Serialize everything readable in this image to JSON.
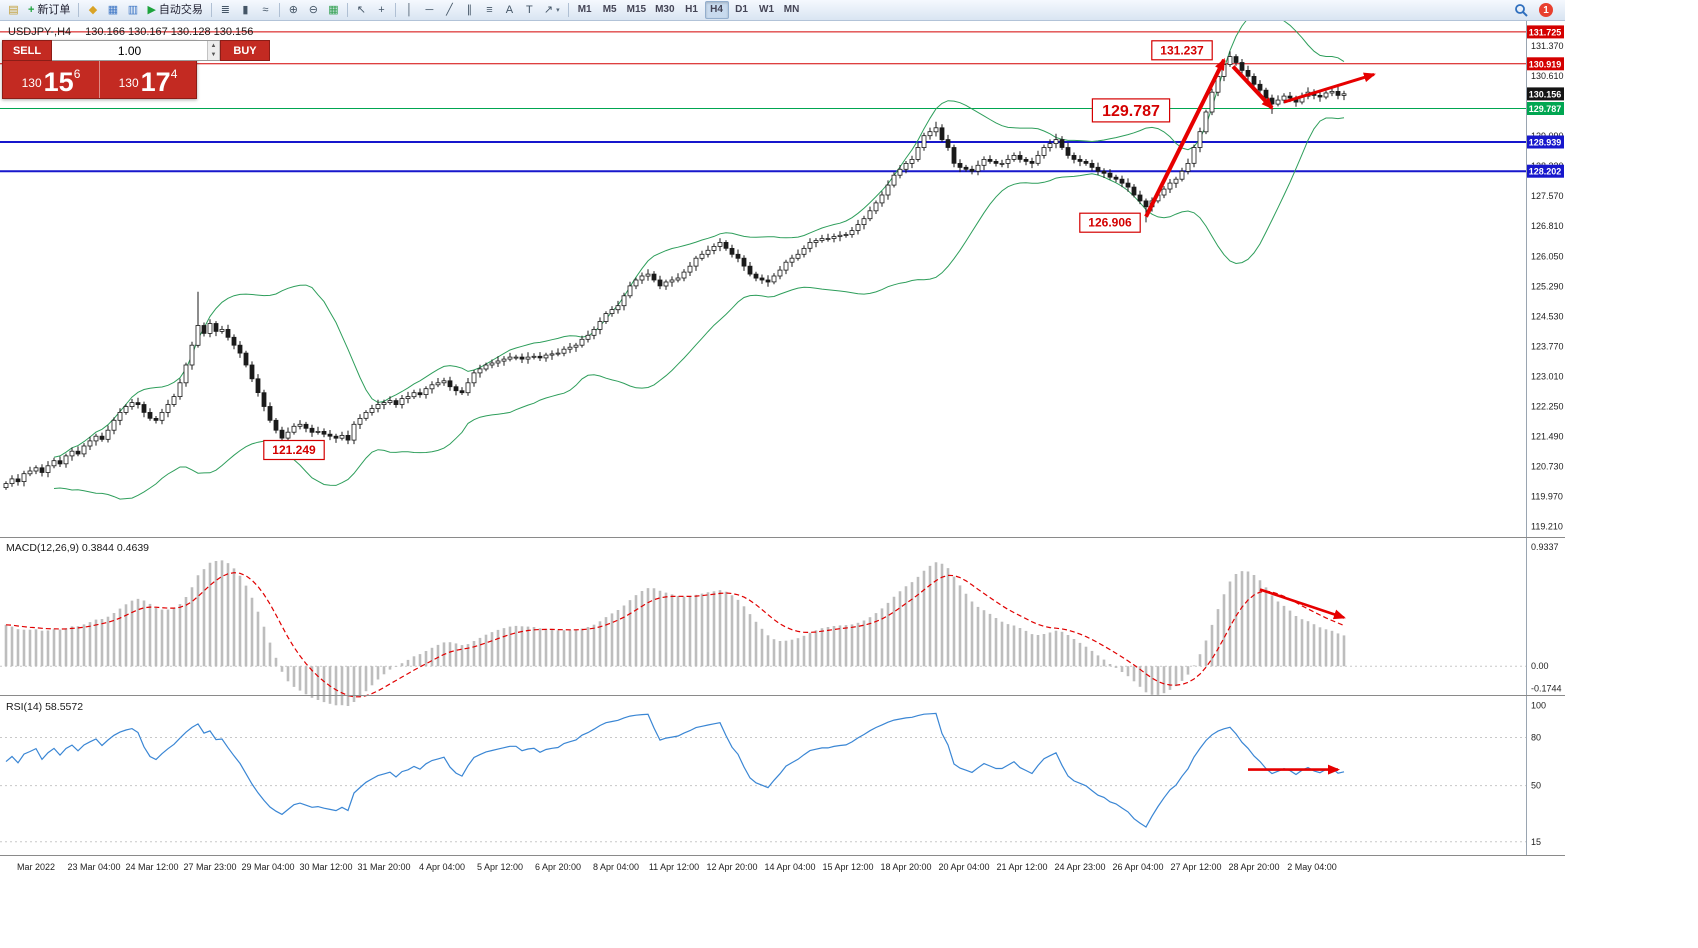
{
  "toolbar": {
    "items": [
      {
        "id": "new-chart-button",
        "glyph": "▤",
        "color": "#c09a2e"
      },
      {
        "id": "new-order-button",
        "glyph": "+",
        "color": "#1da33c",
        "label": "新订单",
        "bold": true
      },
      {
        "id": "sep-1",
        "sep": true
      },
      {
        "id": "expert-advisors-icon",
        "glyph": "◆",
        "color": "#d9a326"
      },
      {
        "id": "market-watch-button",
        "glyph": "▦",
        "color": "#3b74c4"
      },
      {
        "id": "data-window-button",
        "glyph": "▥",
        "color": "#3b74c4"
      },
      {
        "id": "autotrading-button",
        "glyph": "▶",
        "color": "#1da33c",
        "label": "自动交易"
      },
      {
        "id": "sep-2",
        "sep": true
      },
      {
        "id": "bar-chart-type-button",
        "glyph": "≣",
        "color": "#445566"
      },
      {
        "id": "candlestick-chart-type-button",
        "glyph": "▮",
        "color": "#445566"
      },
      {
        "id": "line-chart-type-button",
        "glyph": "≈",
        "color": "#445566"
      },
      {
        "id": "sep-3",
        "sep": true
      },
      {
        "id": "zoom-in-button",
        "glyph": "⊕",
        "color": "#445566"
      },
      {
        "id": "zoom-out-button",
        "glyph": "⊖",
        "color": "#445566"
      },
      {
        "id": "tile-windows-button",
        "glyph": "▦",
        "color": "#2c9e4b"
      },
      {
        "id": "sep-4",
        "sep": true
      },
      {
        "id": "cursor-tool-button",
        "glyph": "↖",
        "color": "#445566"
      },
      {
        "id": "crosshair-tool-button",
        "glyph": "+",
        "color": "#445566"
      },
      {
        "id": "sep-5",
        "sep": true
      },
      {
        "id": "vertical-line-tool-button",
        "glyph": "│",
        "color": "#445566"
      },
      {
        "id": "horizontal-line-tool-button",
        "glyph": "─",
        "color": "#445566"
      },
      {
        "id": "trendline-tool-button",
        "glyph": "╱",
        "color": "#445566"
      },
      {
        "id": "channel-tool-button",
        "glyph": "∥",
        "color": "#445566"
      },
      {
        "id": "fibonacci-tool-button",
        "glyph": "≡",
        "color": "#445566"
      },
      {
        "id": "text-tool-button",
        "glyph": "A",
        "color": "#445566"
      },
      {
        "id": "label-tool-button",
        "glyph": "T",
        "color": "#445566"
      },
      {
        "id": "arrows-tool-button",
        "glyph": "↗",
        "color": "#445566",
        "caret": true
      },
      {
        "id": "sep-6",
        "sep": true
      }
    ],
    "timeframes": [
      "M1",
      "M5",
      "M15",
      "M30",
      "H1",
      "H4",
      "D1",
      "W1",
      "MN"
    ],
    "active_timeframe": "H4",
    "notification_count": "1"
  },
  "trade": {
    "sell_label": "SELL",
    "buy_label": "BUY",
    "volume": "1.00",
    "sell_price": {
      "prefix": "130",
      "big": "15",
      "sup": "6"
    },
    "buy_price": {
      "prefix": "130",
      "big": "17",
      "sup": "4"
    }
  },
  "chart": {
    "symbol_period": "USDJPY-,H4",
    "ohlc": "130.166 130.167 130.128 130.156"
  },
  "chart_data": [
    {
      "type": "candlestick",
      "title": "USDJPY- H4",
      "ylim": [
        119.0,
        131.95
      ],
      "closes": [
        120.3,
        120.42,
        120.35,
        120.55,
        120.62,
        120.7,
        120.58,
        120.75,
        120.88,
        120.8,
        121.0,
        121.12,
        121.05,
        121.25,
        121.38,
        121.5,
        121.42,
        121.65,
        121.9,
        122.1,
        122.25,
        122.35,
        122.3,
        122.1,
        121.95,
        121.9,
        122.1,
        122.3,
        122.5,
        122.85,
        123.3,
        123.8,
        124.3,
        124.1,
        124.35,
        124.15,
        124.2,
        124.0,
        123.8,
        123.6,
        123.3,
        122.95,
        122.6,
        122.25,
        121.9,
        121.65,
        121.45,
        121.6,
        121.75,
        121.8,
        121.7,
        121.6,
        121.62,
        121.55,
        121.5,
        121.45,
        121.52,
        121.4,
        121.8,
        121.95,
        122.1,
        122.2,
        122.3,
        122.35,
        122.4,
        122.3,
        122.45,
        122.5,
        122.6,
        122.55,
        122.7,
        122.8,
        122.85,
        122.9,
        122.75,
        122.65,
        122.6,
        122.85,
        123.1,
        123.2,
        123.3,
        123.35,
        123.4,
        123.45,
        123.5,
        123.5,
        123.45,
        123.5,
        123.52,
        123.48,
        123.55,
        123.58,
        123.6,
        123.7,
        123.75,
        123.8,
        123.95,
        124.05,
        124.2,
        124.4,
        124.6,
        124.7,
        124.8,
        125.05,
        125.3,
        125.45,
        125.55,
        125.6,
        125.45,
        125.3,
        125.4,
        125.45,
        125.5,
        125.65,
        125.8,
        126.0,
        126.1,
        126.2,
        126.3,
        126.4,
        126.25,
        126.1,
        126.0,
        125.8,
        125.6,
        125.5,
        125.45,
        125.4,
        125.55,
        125.7,
        125.9,
        126.0,
        126.1,
        126.25,
        126.4,
        126.45,
        126.5,
        126.5,
        126.55,
        126.58,
        126.6,
        126.7,
        126.85,
        127.0,
        127.2,
        127.4,
        127.6,
        127.85,
        128.1,
        128.25,
        128.4,
        128.5,
        128.8,
        129.1,
        129.2,
        129.3,
        129.0,
        128.8,
        128.4,
        128.3,
        128.25,
        128.2,
        128.35,
        128.5,
        128.45,
        128.4,
        128.4,
        128.5,
        128.6,
        128.5,
        128.45,
        128.4,
        128.6,
        128.8,
        128.9,
        129.0,
        128.8,
        128.6,
        128.5,
        128.45,
        128.4,
        128.3,
        128.2,
        128.15,
        128.05,
        128.0,
        127.9,
        127.8,
        127.6,
        127.45,
        127.3,
        127.45,
        127.6,
        127.75,
        127.9,
        128.0,
        128.2,
        128.4,
        128.8,
        129.2,
        129.7,
        130.2,
        130.6,
        130.9,
        131.1,
        130.95,
        130.75,
        130.6,
        130.4,
        130.25,
        130.05,
        129.9,
        130.0,
        130.1,
        130.05,
        129.95,
        130.1,
        130.2,
        130.12,
        130.08,
        130.18,
        130.22,
        130.12,
        130.16
      ],
      "wick_overrides": [
        {
          "i": 32,
          "high": 125.15
        },
        {
          "i": 46,
          "low": 121.249
        },
        {
          "i": 57,
          "low": 121.3
        },
        {
          "i": 155,
          "high": 129.45
        },
        {
          "i": 175,
          "high": 129.15
        },
        {
          "i": 190,
          "low": 126.906
        },
        {
          "i": 204,
          "high": 131.237
        },
        {
          "i": 211,
          "low": 129.65
        }
      ],
      "bollinger": {
        "period": 20,
        "deviation": 2.2,
        "color": "#2e9e5b"
      },
      "hlines": [
        {
          "price": 131.725,
          "color": "#d40000",
          "label": "131.725",
          "width": 1
        },
        {
          "price": 130.919,
          "color": "#d40000",
          "label": "130.919",
          "width": 1
        },
        {
          "price": 129.787,
          "color": "#00a651",
          "label": "129.787",
          "width": 1
        },
        {
          "price": 128.939,
          "color": "#1717cc",
          "label": "128.939",
          "width": 2
        },
        {
          "price": 128.202,
          "color": "#1717cc",
          "label": "128.202",
          "width": 2
        }
      ],
      "current_price": {
        "value": 130.156,
        "label": "130.156",
        "bg": "#141414"
      },
      "axis_ticks": [
        131.37,
        130.61,
        129.85,
        129.09,
        128.33,
        127.57,
        126.81,
        126.05,
        125.29,
        124.53,
        123.77,
        123.01,
        122.25,
        121.49,
        120.73,
        119.97,
        119.21
      ],
      "annotations": [
        {
          "text": "131.237",
          "i": 196,
          "price": 131.26,
          "size": 12
        },
        {
          "text": "129.787",
          "i": 187.5,
          "price": 129.74,
          "size": 16
        },
        {
          "text": "126.906",
          "i": 184,
          "price": 126.9,
          "size": 12
        },
        {
          "text": "121.249",
          "i": 48,
          "price": 121.15,
          "size": 12
        }
      ],
      "arrows": [
        {
          "from": [
            190,
            127.05
          ],
          "to": [
            203,
            131.02
          ],
          "width": 4
        },
        {
          "from": [
            204.5,
            130.85
          ],
          "to": [
            211,
            129.8
          ],
          "width": 4
        },
        {
          "from": [
            213,
            129.95
          ],
          "to": [
            228,
            130.65
          ],
          "width": 3
        }
      ],
      "time_labels": [
        "Mar 2022",
        "23 Mar 04:00",
        "24 Mar 12:00",
        "27 Mar 23:00",
        "29 Mar 04:00",
        "30 Mar 12:00",
        "31 Mar 20:00",
        "4 Apr 04:00",
        "5 Apr 12:00",
        "6 Apr 20:00",
        "8 Apr 04:00",
        "11 Apr 12:00",
        "12 Apr 20:00",
        "14 Apr 04:00",
        "15 Apr 12:00",
        "18 Apr 20:00",
        "20 Apr 04:00",
        "21 Apr 12:00",
        "24 Apr 23:00",
        "26 Apr 04:00",
        "27 Apr 12:00",
        "28 Apr 20:00",
        "2 May 04:00"
      ]
    },
    {
      "type": "macd",
      "label": "MACD(12,26,9) 0.3844 0.4639",
      "params": [
        12,
        26,
        9
      ],
      "current_values": [
        "0.3844",
        "0.4639"
      ],
      "ylim": [
        -0.21,
        0.98
      ],
      "axis_ticks": [
        {
          "v": 0.9337,
          "t": "0.9337"
        },
        {
          "v": 0.0,
          "t": "0.00"
        },
        {
          "v": -0.1744,
          "t": "-0.1744"
        }
      ],
      "histogram_color": "#bdbdbd",
      "signal_color": "#e00000",
      "arrow": {
        "from": [
          209,
          0.6
        ],
        "to": [
          223,
          0.38
        ]
      }
    },
    {
      "type": "rsi",
      "label": "RSI(14) 58.5572",
      "period": 14,
      "value": "58.5572",
      "ylim": [
        8,
        104
      ],
      "levels": [
        80,
        50,
        15
      ],
      "axis_ticks": [
        {
          "v": 100,
          "t": "100"
        },
        {
          "v": 80,
          "t": "80"
        },
        {
          "v": 50,
          "t": "50"
        },
        {
          "v": 15,
          "t": "15"
        }
      ],
      "line_color": "#3a86d4",
      "arrow": {
        "from": [
          207,
          60
        ],
        "to": [
          222,
          60
        ]
      }
    }
  ]
}
